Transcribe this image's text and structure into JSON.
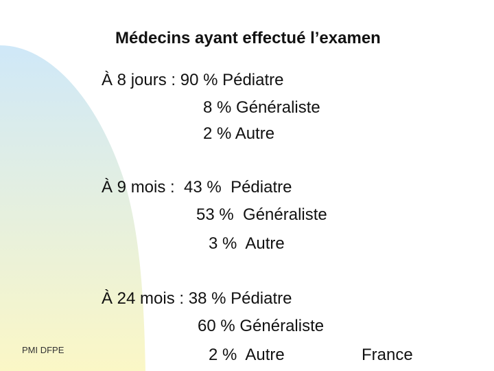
{
  "slide": {
    "title": "Médecins ayant effectué l’examen",
    "blocks": [
      {
        "lines": [
          "À 8 jours : 90 % Pédiatre",
          "8 % Généraliste",
          "2 % Autre"
        ]
      },
      {
        "lines": [
          "À 9 mois :  43 %  Pédiatre",
          "53 %  Généraliste",
          "3 %  Autre"
        ]
      },
      {
        "lines": [
          "À 24 mois : 38 % Pédiatre",
          "60 % Généraliste",
          "2 %  Autre"
        ]
      }
    ],
    "country": "France",
    "footer": "PMI DFPE"
  },
  "colors": {
    "decor_top": "#cfe8f8",
    "decor_bottom": "#fbf7c6"
  }
}
